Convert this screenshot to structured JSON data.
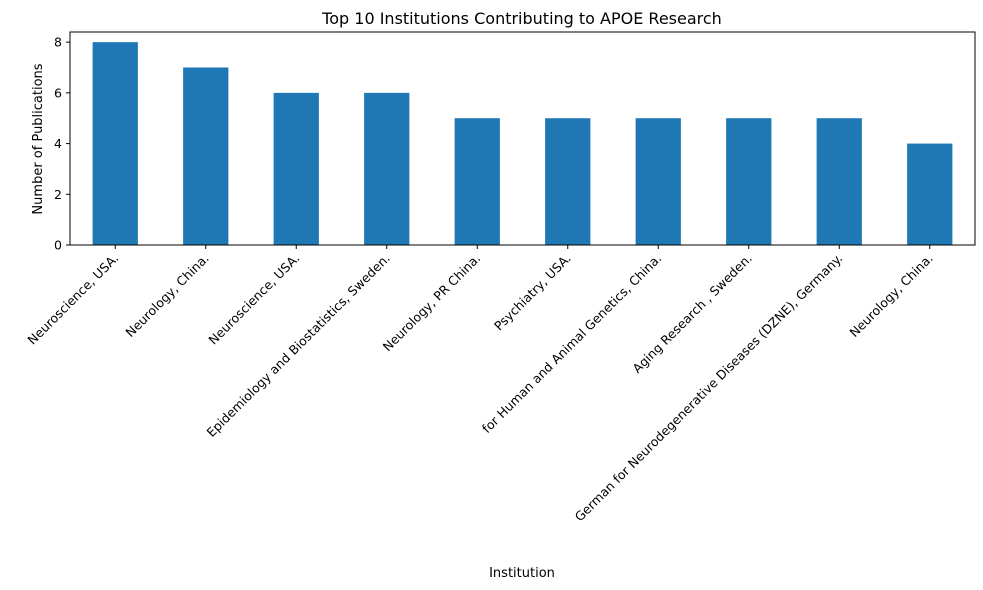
{
  "chart_data": {
    "type": "bar",
    "title": "Top 10 Institutions Contributing to APOE Research",
    "xlabel": "Institution",
    "ylabel": "Number of Publications",
    "categories": [
      "Neuroscience, USA.",
      "Neurology, China.",
      "Neuroscience, USA.",
      "Epidemiology and Biostatistics, Sweden.",
      "Neurology, PR China.",
      "Psychiatry, USA.",
      "for Human and Animal Genetics, China.",
      "Aging Research , Sweden.",
      "German  for Neurodegenerative Diseases (DZNE), Germany.",
      "Neurology, China."
    ],
    "values": [
      8,
      7,
      6,
      6,
      5,
      5,
      5,
      5,
      5,
      4
    ],
    "ylim": [
      0,
      8.4
    ],
    "yticks": [
      0,
      2,
      4,
      6,
      8
    ],
    "grid": false,
    "legend": "none",
    "bar_color": "#1f77b4"
  }
}
